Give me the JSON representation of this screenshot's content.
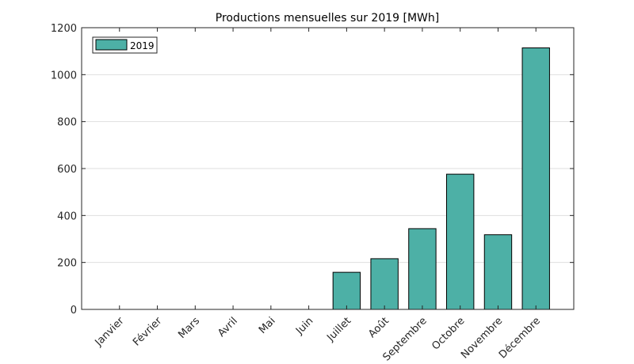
{
  "chart_data": {
    "type": "bar",
    "title": "Productions mensuelles sur 2019 [MWh]",
    "xlabel": "",
    "ylabel": "",
    "categories": [
      "Janvier",
      "Février",
      "Mars",
      "Avril",
      "Mai",
      "Juin",
      "Juillet",
      "Août",
      "Septembre",
      "Octobre",
      "Novembre",
      "Décembre"
    ],
    "series": [
      {
        "name": "2019",
        "color": "#4db0a6",
        "values": [
          0,
          0,
          0,
          0,
          0,
          0,
          158,
          216,
          344,
          576,
          318,
          1114
        ]
      }
    ],
    "ylim": [
      0,
      1200
    ],
    "yticks": [
      0,
      200,
      400,
      600,
      800,
      1000,
      1200
    ],
    "grid": "horizontal",
    "legend_position": "top-left"
  }
}
